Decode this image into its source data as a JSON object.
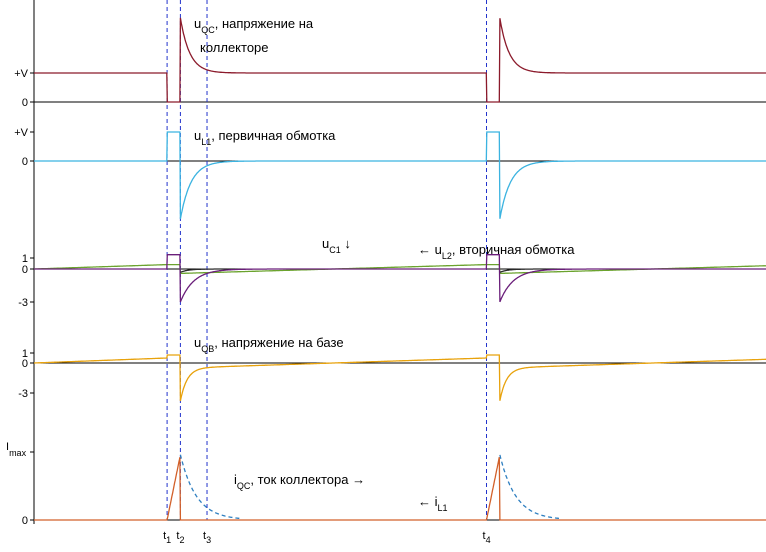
{
  "chart_data": {
    "type": "line",
    "time_markers": [
      {
        "name": "t",
        "sub": "1",
        "t": 1.0
      },
      {
        "name": "t",
        "sub": "2",
        "t": 1.1
      },
      {
        "name": "t",
        "sub": "3",
        "t": 1.3
      },
      {
        "name": "t",
        "sub": "4",
        "t": 3.4
      }
    ],
    "panels": [
      {
        "id": "uqc",
        "label_main": "u",
        "label_sub": "QC",
        "label_rest": ", напряжение на",
        "label_line2": "коллекторе",
        "yticks": [
          {
            "label": "+V",
            "value": 1
          },
          {
            "label": "0",
            "value": 0
          }
        ],
        "ylim": [
          0,
          2.1
        ],
        "series": [
          {
            "color": "#8B1A2B"
          }
        ]
      },
      {
        "id": "ul1",
        "label_main": "u",
        "label_sub": "L1",
        "label_rest": ", первичная обмотка",
        "yticks": [
          {
            "label": "+V",
            "value": 1
          },
          {
            "label": "0",
            "value": 0
          }
        ],
        "ylim": [
          -2.1,
          1.1
        ],
        "series": [
          {
            "color": "#3BB3E0"
          }
        ]
      },
      {
        "id": "uc1",
        "label_main": "u",
        "label_sub": "C1",
        "label_rest": " ↓",
        "label2_main": "← u",
        "label2_sub": "L2",
        "label2_rest": ", вторичная обмотка",
        "yticks": [
          {
            "label": "1",
            "value": 1
          },
          {
            "label": "0",
            "value": 0
          },
          {
            "label": "-3",
            "value": -3
          }
        ],
        "ylim": [
          -3.6,
          1.5
        ],
        "series": [
          {
            "color": "#6BA32E"
          },
          {
            "color": "#6A1E7A"
          },
          {
            "color": "#2a2a2a"
          }
        ]
      },
      {
        "id": "uqb",
        "label_main": "u",
        "label_sub": "QB",
        "label_rest": ", напряжение на базе",
        "yticks": [
          {
            "label": "1",
            "value": 1
          },
          {
            "label": "0",
            "value": 0
          },
          {
            "label": "-3",
            "value": -3
          }
        ],
        "ylim": [
          -3.6,
          1.5
        ],
        "series": [
          {
            "color": "#E8A20C"
          }
        ]
      },
      {
        "id": "iqc",
        "label_main": "i",
        "label_sub": "QC",
        "label_rest": ", ток коллектора →",
        "label2_main": "← i",
        "label2_sub": "L1",
        "yticks": [
          {
            "label": "I",
            "sub": "max",
            "value": 1
          },
          {
            "label": "0",
            "value": 0
          }
        ],
        "ylim": [
          0,
          1.05
        ],
        "series": [
          {
            "color": "#D2602A"
          },
          {
            "color": "#2F7FC0",
            "style": "dashed"
          }
        ]
      }
    ],
    "xlim": [
      0,
      5.5
    ]
  }
}
